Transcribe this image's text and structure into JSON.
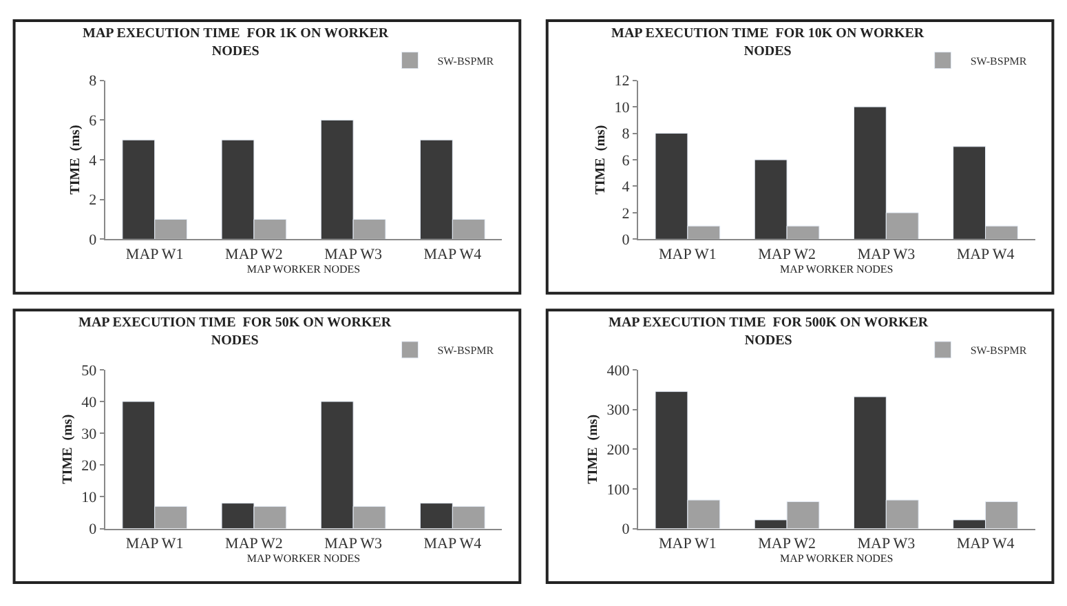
{
  "chart_data": [
    {
      "type": "bar",
      "title": "MAP EXECUTION TIME  FOR 1K ON WORKER NODES",
      "xlabel": "MAP WORKER NODES",
      "ylabel": "TIME  (ms)",
      "categories": [
        "MAP W1",
        "MAP W2",
        "MAP W3",
        "MAP W4"
      ],
      "series": [
        {
          "color": "#3a3a3a",
          "values": [
            5,
            5,
            6,
            5
          ]
        },
        {
          "name": "SW-BSPMR",
          "color": "#a0a0a0",
          "values": [
            1,
            1,
            1,
            1
          ]
        }
      ],
      "ylim": [
        0,
        8
      ],
      "yticks": [
        0,
        2,
        4,
        6,
        8
      ],
      "grid": false,
      "legend": "top right"
    },
    {
      "type": "bar",
      "title": "MAP EXECUTION TIME  FOR 10K ON WORKER NODES",
      "xlabel": "MAP WORKER NODES",
      "ylabel": "TIME  (ms)",
      "categories": [
        "MAP W1",
        "MAP W2",
        "MAP W3",
        "MAP W4"
      ],
      "series": [
        {
          "color": "#3a3a3a",
          "values": [
            8,
            6,
            10,
            7
          ]
        },
        {
          "name": "SW-BSPMR",
          "color": "#a0a0a0",
          "values": [
            1,
            1,
            2,
            1
          ]
        }
      ],
      "ylim": [
        0,
        12
      ],
      "yticks": [
        0,
        2,
        4,
        6,
        8,
        10,
        12
      ],
      "grid": false,
      "legend": "top right"
    },
    {
      "type": "bar",
      "title": "MAP EXECUTION TIME  FOR 50K ON WORKER NODES",
      "xlabel": "MAP WORKER NODES",
      "ylabel": "TIME  (ms)",
      "categories": [
        "MAP W1",
        "MAP W2",
        "MAP W3",
        "MAP W4"
      ],
      "series": [
        {
          "color": "#3a3a3a",
          "values": [
            40,
            8,
            40,
            8
          ]
        },
        {
          "name": "SW-BSPMR",
          "color": "#a0a0a0",
          "values": [
            7,
            7,
            7,
            7
          ]
        }
      ],
      "ylim": [
        0,
        50
      ],
      "yticks": [
        0,
        10,
        20,
        30,
        40,
        50
      ],
      "grid": false,
      "legend": "top right"
    },
    {
      "type": "bar",
      "title": "MAP EXECUTION TIME  FOR 500K ON WORKER NODES",
      "xlabel": "MAP WORKER NODES",
      "ylabel": "TIME  (ms)",
      "categories": [
        "MAP W1",
        "MAP W2",
        "MAP W3",
        "MAP W4"
      ],
      "series": [
        {
          "color": "#3a3a3a",
          "values": [
            345,
            22,
            332,
            22
          ]
        },
        {
          "name": "SW-BSPMR",
          "color": "#a0a0a0",
          "values": [
            72,
            68,
            72,
            68
          ]
        }
      ],
      "ylim": [
        0,
        400
      ],
      "yticks": [
        0,
        100,
        200,
        300,
        400
      ],
      "grid": false,
      "legend": "top right"
    }
  ]
}
